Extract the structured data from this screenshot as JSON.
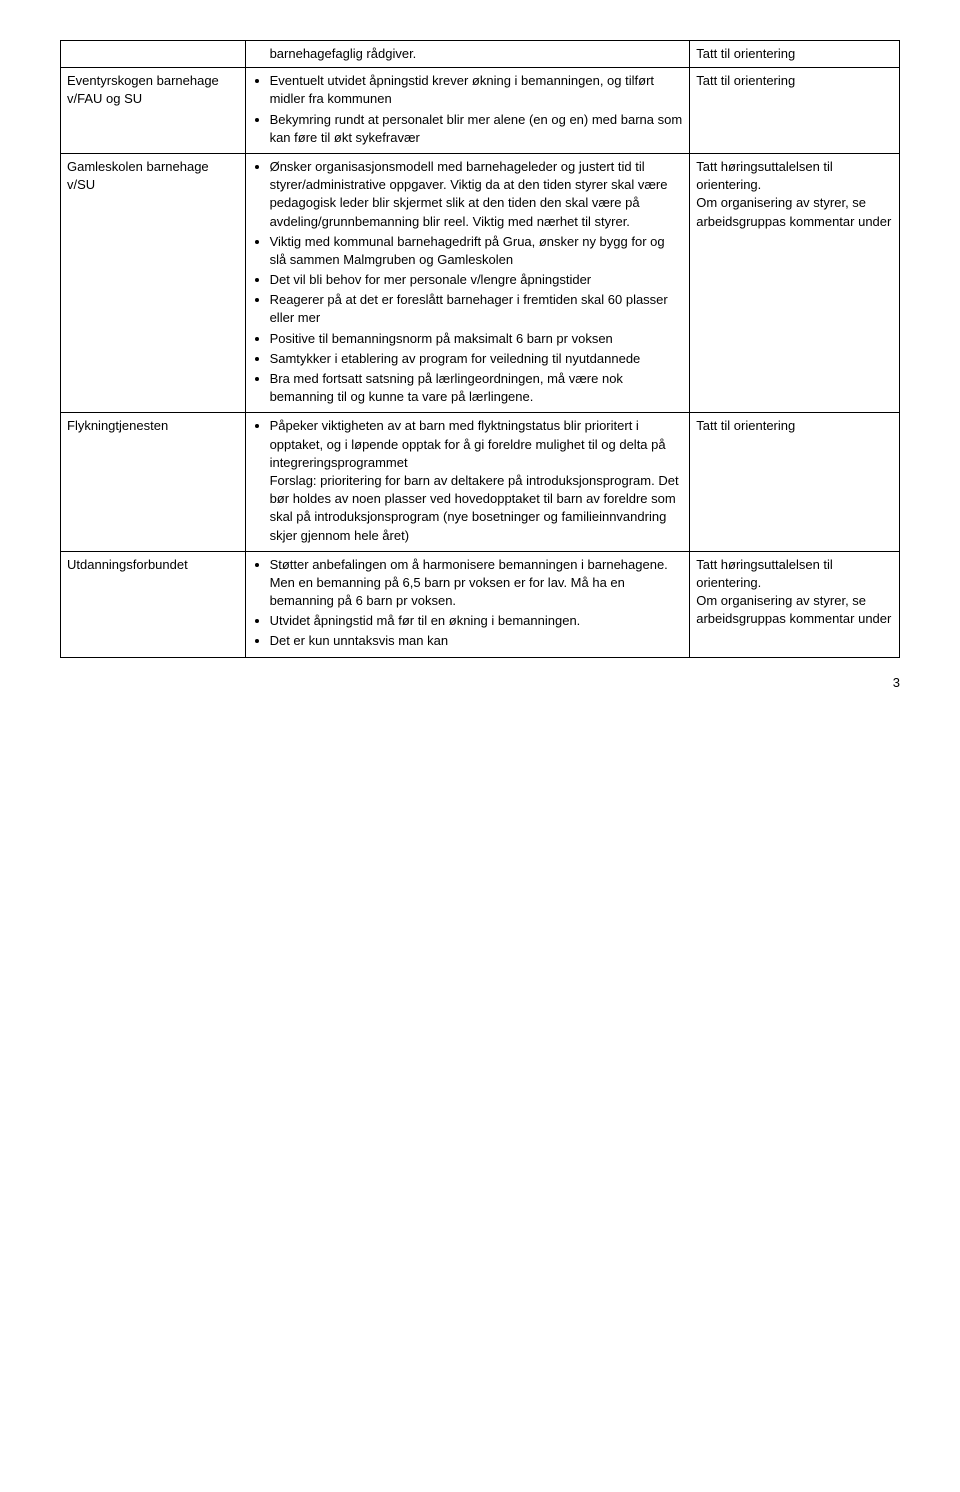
{
  "rows": [
    {
      "left": "",
      "center_pre": "barnehagefaglig rådgiver.",
      "bullets": [],
      "right": "Tatt til orientering"
    },
    {
      "left": "Eventyrskogen barnehage v/FAU og SU",
      "bullets": [
        "Eventuelt utvidet åpningstid krever økning i bemanningen, og tilført midler fra kommunen",
        "Bekymring rundt at personalet blir mer alene (en og en) med barna som kan føre til økt sykefravær"
      ],
      "right": "Tatt til orientering"
    },
    {
      "left": "Gamleskolen barnehage v/SU",
      "bullets": [
        "Ønsker organisasjonsmodell med barnehageleder og justert tid til styrer/administrative oppgaver. Viktig da at den tiden styrer skal være pedagogisk leder blir skjermet slik at den tiden den skal være på avdeling/grunnbemanning blir reel. Viktig med nærhet til styrer.",
        "Viktig med kommunal barnehagedrift på Grua, ønsker ny bygg for og slå sammen Malmgruben og Gamleskolen",
        "Det vil bli behov for mer personale v/lengre åpningstider",
        "Reagerer på at det er foreslått barnehager i fremtiden skal 60 plasser eller mer",
        "Positive til bemanningsnorm på maksimalt 6 barn pr voksen",
        "Samtykker i etablering av program for veiledning til nyutdannede",
        "Bra med fortsatt satsning på lærlingeordningen, må være nok bemanning til og kunne ta vare på lærlingene."
      ],
      "right": "Tatt høringsuttalelsen til orientering.\nOm organisering av styrer, se arbeidsgruppas kommentar under"
    },
    {
      "left": "Flykningtjenesten",
      "bullets": [
        "Påpeker viktigheten av at barn med flyktningstatus blir prioritert i opptaket, og i løpende opptak for å gi foreldre mulighet til og delta på integreringsprogrammet\nForslag: prioritering for barn av deltakere på introduksjonsprogram. Det bør holdes av noen plasser ved hovedopptaket til barn av foreldre som skal på introduksjonsprogram (nye bosetninger og familieinnvandring skjer gjennom hele året)"
      ],
      "right": "Tatt til orientering"
    },
    {
      "left": "Utdanningsforbundet",
      "bullets": [
        "Støtter anbefalingen om å harmonisere bemanningen i barnehagene. Men en bemanning på 6,5 barn pr voksen er for lav. Må ha en bemanning på 6 barn pr voksen.",
        "Utvidet åpningstid må før til en økning i bemanningen.",
        "Det er kun unntaksvis man kan"
      ],
      "right": "Tatt høringsuttalelsen til orientering.\nOm organisering av styrer, se arbeidsgruppas kommentar under"
    }
  ],
  "page_number": "3"
}
